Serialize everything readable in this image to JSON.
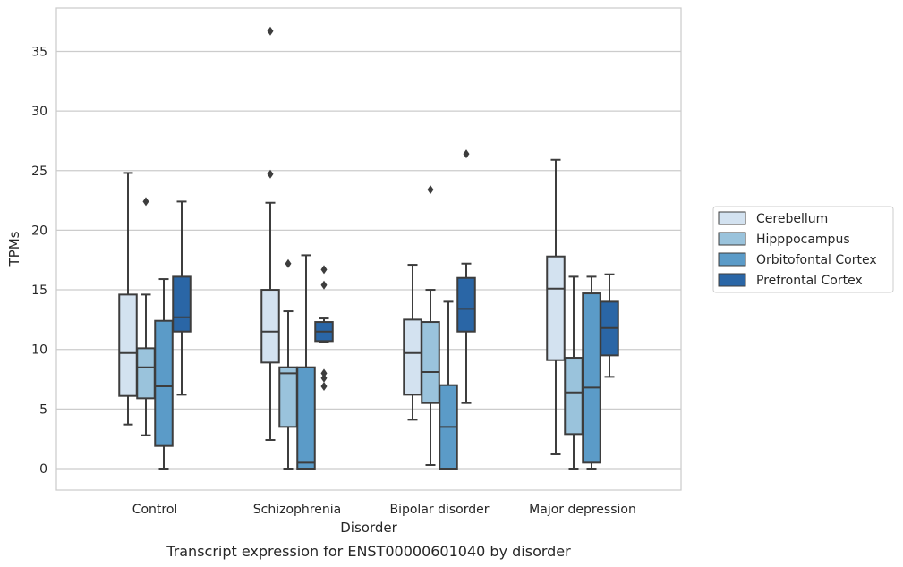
{
  "caption": "Transcript expression for ENST00000601040 by disorder",
  "chart_data": {
    "type": "box",
    "xlabel": "Disorder",
    "ylabel": "TPMs",
    "ylim": [
      -1.8,
      38.5
    ],
    "yticks": [
      0,
      5,
      10,
      15,
      20,
      25,
      30,
      35
    ],
    "grid": "horizontal",
    "legend_position": "right",
    "categories": [
      "Control",
      "Schizophrenia",
      "Bipolar disorder",
      "Major depression"
    ],
    "series": [
      {
        "name": "Cerebellum",
        "color": "#d3e2f0",
        "boxes": [
          {
            "whislo": 3.7,
            "q1": 6.1,
            "med": 9.7,
            "q3": 14.6,
            "whishi": 24.8,
            "fliers": []
          },
          {
            "whislo": 2.4,
            "q1": 8.9,
            "med": 11.5,
            "q3": 15.0,
            "whishi": 22.3,
            "fliers": [
              24.7,
              36.7
            ]
          },
          {
            "whislo": 4.1,
            "q1": 6.2,
            "med": 9.7,
            "q3": 12.5,
            "whishi": 17.1,
            "fliers": []
          },
          {
            "whislo": 1.2,
            "q1": 9.1,
            "med": 15.1,
            "q3": 17.8,
            "whishi": 25.9,
            "fliers": []
          }
        ]
      },
      {
        "name": "Hipppocampus",
        "color": "#9ac3dc",
        "boxes": [
          {
            "whislo": 2.8,
            "q1": 5.9,
            "med": 8.5,
            "q3": 10.1,
            "whishi": 14.6,
            "fliers": [
              22.4
            ]
          },
          {
            "whislo": 0.0,
            "q1": 3.5,
            "med": 8.0,
            "q3": 8.5,
            "whishi": 13.2,
            "fliers": [
              17.2
            ]
          },
          {
            "whislo": 0.3,
            "q1": 5.5,
            "med": 8.1,
            "q3": 12.3,
            "whishi": 15.0,
            "fliers": [
              23.4
            ]
          },
          {
            "whislo": 0.0,
            "q1": 2.9,
            "med": 6.4,
            "q3": 9.3,
            "whishi": 16.1,
            "fliers": []
          }
        ]
      },
      {
        "name": "Orbitofontal Cortex",
        "color": "#5b9bc8",
        "boxes": [
          {
            "whislo": 0.0,
            "q1": 1.9,
            "med": 6.9,
            "q3": 12.4,
            "whishi": 15.9,
            "fliers": []
          },
          {
            "whislo": 0.0,
            "q1": 0.0,
            "med": 0.5,
            "q3": 8.5,
            "whishi": 17.9,
            "fliers": []
          },
          {
            "whislo": 0.0,
            "q1": 0.0,
            "med": 3.5,
            "q3": 7.0,
            "whishi": 14.0,
            "fliers": []
          },
          {
            "whislo": 0.0,
            "q1": 0.5,
            "med": 6.8,
            "q3": 14.7,
            "whishi": 16.1,
            "fliers": []
          }
        ]
      },
      {
        "name": "Prefrontal Cortex",
        "color": "#2a66a6",
        "boxes": [
          {
            "whislo": 6.2,
            "q1": 11.5,
            "med": 12.7,
            "q3": 16.1,
            "whishi": 22.4,
            "fliers": []
          },
          {
            "whislo": 10.6,
            "q1": 10.7,
            "med": 11.5,
            "q3": 12.3,
            "whishi": 12.6,
            "fliers": [
              16.7,
              15.4,
              8.0,
              7.6,
              6.9
            ]
          },
          {
            "whislo": 5.5,
            "q1": 11.5,
            "med": 13.4,
            "q3": 16.0,
            "whishi": 17.2,
            "fliers": [
              26.4
            ]
          },
          {
            "whislo": 7.7,
            "q1": 9.5,
            "med": 11.8,
            "q3": 14.0,
            "whishi": 16.3,
            "fliers": []
          }
        ]
      }
    ]
  }
}
